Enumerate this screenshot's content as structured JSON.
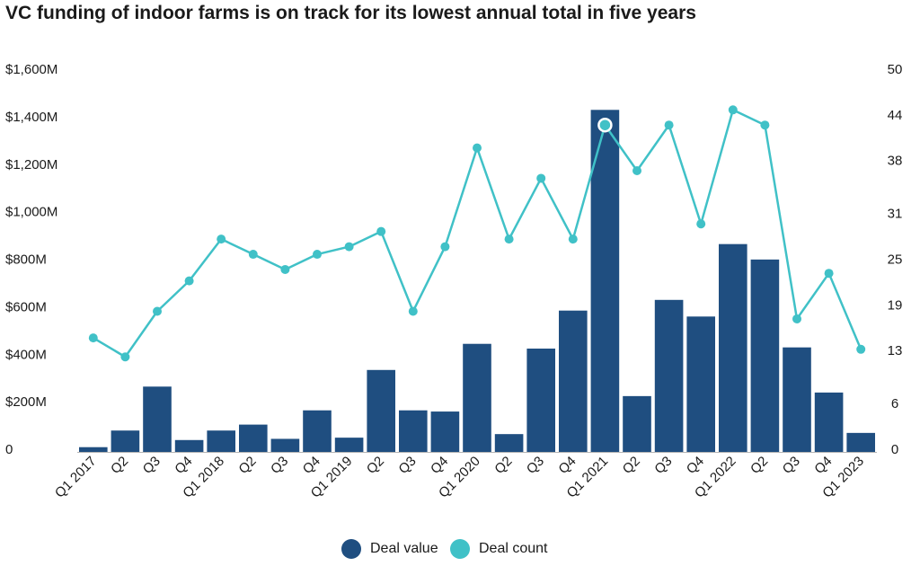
{
  "chart_data": {
    "type": "bar",
    "title": "VC funding of indoor farms is on track for its lowest  annual total in five years",
    "categories": [
      "Q1 2017",
      "Q2",
      "Q3",
      "Q4",
      "Q1 2018",
      "Q2",
      "Q3",
      "Q4",
      "Q1 2019",
      "Q2",
      "Q3",
      "Q4",
      "Q1 2020",
      "Q2",
      "Q3",
      "Q4",
      "Q1 2021",
      "Q2",
      "Q3",
      "Q4",
      "Q1 2022",
      "Q2",
      "Q3",
      "Q4",
      "Q1 2023"
    ],
    "series": [
      {
        "name": "Deal value",
        "type": "bar",
        "axis": "left",
        "color": "#1f4e80",
        "values": [
          20,
          90,
          275,
          50,
          90,
          115,
          55,
          175,
          60,
          345,
          175,
          170,
          455,
          75,
          435,
          595,
          1440,
          235,
          640,
          570,
          875,
          810,
          440,
          250,
          80
        ]
      },
      {
        "name": "Deal count",
        "type": "line",
        "axis": "right",
        "color": "#40c1c7",
        "values": [
          15,
          12.5,
          18.5,
          22.5,
          28,
          26,
          24,
          26,
          27,
          29,
          18.5,
          27,
          40,
          28,
          36,
          28,
          43,
          37,
          43,
          30,
          45,
          43,
          17.5,
          23.5,
          13.5
        ]
      }
    ],
    "left_axis": {
      "ylim": [
        0,
        1600
      ],
      "ticks": [
        0,
        200,
        400,
        600,
        800,
        1000,
        1200,
        1400,
        1600
      ],
      "tick_labels": [
        "0",
        "$200M",
        "$400M",
        "$600M",
        "$800M",
        "$1,000M",
        "$1,200M",
        "$1,400M",
        "$1,600M"
      ]
    },
    "right_axis": {
      "ylim": [
        0,
        50
      ],
      "ticks": [
        0,
        6,
        13,
        19,
        25,
        31,
        38,
        44,
        50
      ],
      "tick_labels": [
        "0",
        "6",
        "13",
        "19",
        "25",
        "31",
        "38",
        "44",
        "50"
      ]
    },
    "highlight_index": 16,
    "legend_position": "bottom-center",
    "grid": false
  }
}
